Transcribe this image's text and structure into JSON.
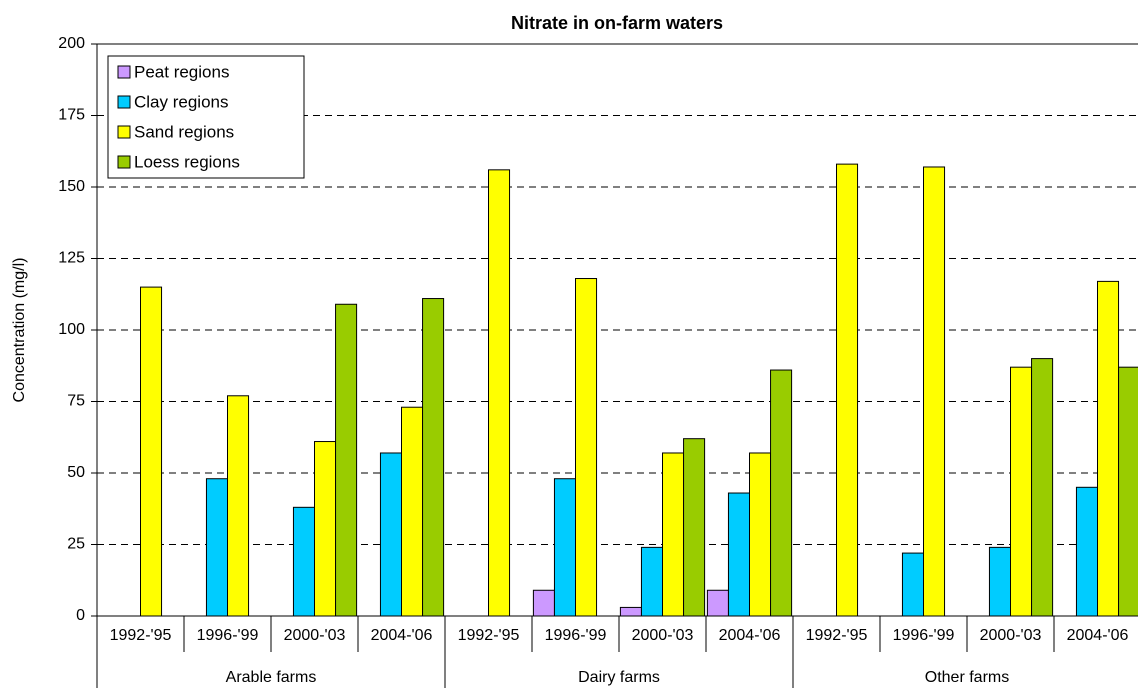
{
  "chart_data": {
    "type": "bar",
    "title": "Nitrate in on-farm waters",
    "y_label": "Concentration (mg/l)",
    "categories": [
      "1992-'95",
      "1996-'99",
      "2000-'03",
      "2004-'06",
      "1992-'95",
      "1996-'99",
      "2000-'03",
      "2004-'06",
      "1992-'95",
      "1996-'99",
      "2000-'03",
      "2004-'06"
    ],
    "groups": [
      "Arable farms",
      "Dairy farms",
      "Other farms"
    ],
    "series": [
      {
        "name": "Peat regions",
        "color": "#cc99ff",
        "values": [
          null,
          null,
          null,
          null,
          null,
          9,
          3,
          9,
          null,
          null,
          null,
          null
        ]
      },
      {
        "name": "Clay regions",
        "color": "#00ccff",
        "values": [
          null,
          48,
          38,
          57,
          null,
          48,
          24,
          43,
          null,
          22,
          24,
          45
        ]
      },
      {
        "name": "Sand regions",
        "color": "#ffff00",
        "values": [
          115,
          77,
          61,
          73,
          156,
          118,
          57,
          57,
          158,
          157,
          87,
          117
        ]
      },
      {
        "name": "Loess regions",
        "color": "#99cc00",
        "values": [
          null,
          null,
          109,
          111,
          null,
          null,
          62,
          86,
          null,
          null,
          90,
          87
        ]
      }
    ],
    "ylim": [
      0,
      200
    ],
    "yticks": [
      0,
      25,
      50,
      75,
      100,
      125,
      150,
      175,
      200
    ],
    "grid": true,
    "legend": "top-left"
  }
}
